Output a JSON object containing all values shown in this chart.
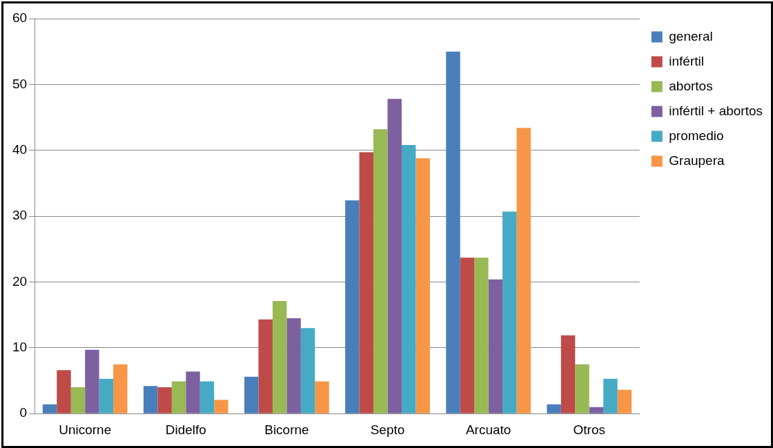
{
  "chart_data": {
    "type": "bar",
    "categories": [
      "Unicorne",
      "Didelfo",
      "Bicorne",
      "Septo",
      "Arcuato",
      "Otros"
    ],
    "series": [
      {
        "name": "general",
        "color": "#4a7ebb",
        "values": [
          1.4,
          4.2,
          5.6,
          32.4,
          55.0,
          1.4
        ]
      },
      {
        "name": "infértil",
        "color": "#be4b48",
        "values": [
          6.6,
          4.0,
          14.3,
          39.7,
          23.7,
          11.9
        ]
      },
      {
        "name": "abortos",
        "color": "#98b954",
        "values": [
          4.0,
          4.9,
          17.1,
          43.2,
          23.7,
          7.5
        ]
      },
      {
        "name": "infértil + abortos",
        "color": "#7d60a0",
        "values": [
          9.7,
          6.4,
          14.5,
          47.8,
          20.4,
          1.0
        ]
      },
      {
        "name": "promedio",
        "color": "#46aac5",
        "values": [
          5.3,
          4.9,
          13.0,
          40.8,
          30.7,
          5.3
        ]
      },
      {
        "name": "Graupera",
        "color": "#f79646",
        "values": [
          7.5,
          2.1,
          4.9,
          38.8,
          43.4,
          3.6
        ]
      }
    ],
    "ylim": [
      0,
      60
    ],
    "yticks": [
      0,
      10,
      20,
      30,
      40,
      50,
      60
    ],
    "grid": "y",
    "legend": "right"
  }
}
